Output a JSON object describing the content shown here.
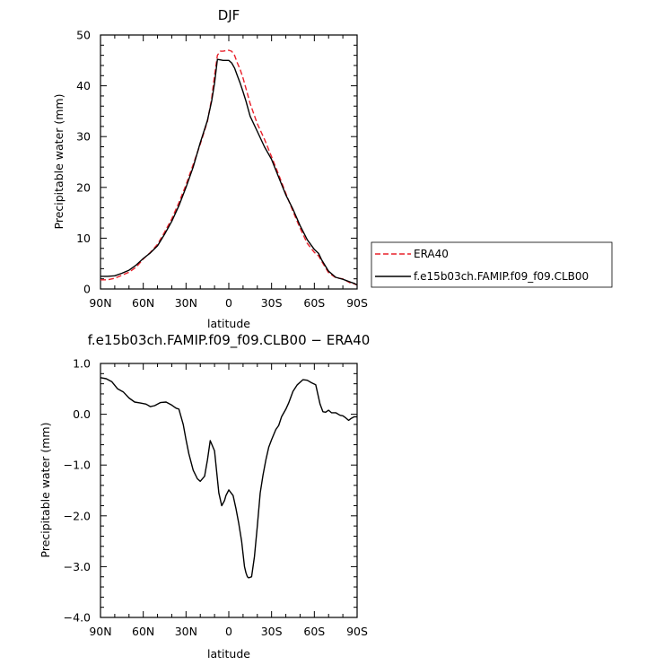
{
  "chart_data": [
    {
      "type": "line",
      "title": "DJF",
      "xlabel": "latitude",
      "ylabel": "Precipitable water (mm)",
      "xlim": [
        90,
        -90
      ],
      "ylim": [
        0,
        50
      ],
      "x_ticks": [
        90,
        60,
        30,
        0,
        -30,
        -60,
        -90
      ],
      "x_tick_labels": [
        "90N",
        "60N",
        "30N",
        "0",
        "30S",
        "60S",
        "90S"
      ],
      "y_ticks": [
        0,
        10,
        20,
        30,
        40,
        50
      ],
      "y_tick_labels": [
        "0",
        "10",
        "20",
        "30",
        "40",
        "50"
      ],
      "legend_position": "right",
      "series": [
        {
          "name": "ERA40",
          "color": "#e8202a",
          "dash": "dashed",
          "x": [
            90,
            85,
            80,
            75,
            70,
            65,
            60,
            55,
            50,
            45,
            40,
            35,
            30,
            25,
            20,
            15,
            12,
            10,
            8,
            6,
            4,
            2,
            0,
            -2,
            -4,
            -6,
            -8,
            -10,
            -12,
            -15,
            -20,
            -25,
            -30,
            -35,
            -40,
            -45,
            -50,
            -55,
            -60,
            -63,
            -65,
            -70,
            -75,
            -80,
            -85,
            -88,
            -90
          ],
          "y": [
            1.8,
            1.8,
            2.1,
            2.7,
            3.3,
            4.3,
            5.9,
            7.2,
            8.8,
            11.2,
            13.8,
            17.0,
            20.5,
            24.5,
            28.5,
            33.0,
            37.5,
            42.0,
            46.0,
            46.8,
            46.8,
            46.9,
            47.0,
            46.8,
            46.0,
            44.5,
            43.2,
            41.5,
            39.5,
            36.5,
            32.5,
            29.5,
            26.0,
            22.5,
            18.8,
            15.3,
            12.0,
            9.0,
            7.2,
            6.5,
            5.5,
            3.2,
            2.2,
            2.0,
            1.2,
            1.0,
            0.8
          ]
        },
        {
          "name": "f.e15b03ch.FAMIP.f09_f09.CLB00",
          "color": "#000000",
          "dash": "solid",
          "x": [
            90,
            85,
            80,
            75,
            70,
            65,
            60,
            55,
            50,
            45,
            40,
            35,
            30,
            25,
            20,
            15,
            12,
            10,
            8,
            6,
            4,
            2,
            0,
            -2,
            -4,
            -6,
            -8,
            -10,
            -12,
            -15,
            -20,
            -25,
            -30,
            -35,
            -40,
            -45,
            -50,
            -55,
            -60,
            -63,
            -65,
            -70,
            -75,
            -80,
            -85,
            -88,
            -90
          ],
          "y": [
            2.5,
            2.5,
            2.6,
            3.1,
            3.7,
            4.7,
            6.0,
            7.1,
            8.5,
            10.8,
            13.3,
            16.4,
            20.0,
            24.0,
            28.8,
            33.2,
            37.0,
            40.5,
            45.2,
            45.1,
            45.0,
            45.0,
            45.0,
            44.5,
            43.5,
            42.0,
            40.5,
            38.8,
            37.0,
            34.0,
            31.0,
            28.0,
            25.5,
            22.0,
            18.5,
            15.7,
            12.5,
            9.7,
            7.8,
            7.0,
            5.8,
            3.5,
            2.3,
            1.9,
            1.4,
            1.1,
            0.8
          ]
        }
      ]
    },
    {
      "type": "line",
      "title": "f.e15b03ch.FAMIP.f09_f09.CLB00 − ERA40",
      "xlabel": "latitude",
      "ylabel": "Precipitable water (mm)",
      "xlim": [
        90,
        -90
      ],
      "ylim": [
        -4.0,
        1.0
      ],
      "x_ticks": [
        90,
        60,
        30,
        0,
        -30,
        -60,
        -90
      ],
      "x_tick_labels": [
        "90N",
        "60N",
        "30N",
        "0",
        "30S",
        "60S",
        "90S"
      ],
      "y_ticks": [
        1.0,
        0.0,
        -1.0,
        -2.0,
        -3.0,
        -4.0
      ],
      "y_tick_labels": [
        "1.0",
        "0.0",
        "−1.0",
        "−2.0",
        "−3.0",
        "−4.0"
      ],
      "series": [
        {
          "color": "#000000",
          "dash": "solid",
          "x": [
            90,
            86,
            82,
            78,
            74,
            70,
            66,
            62,
            58,
            55,
            52,
            48,
            44,
            40,
            37,
            35,
            32,
            30,
            28,
            25,
            22,
            20,
            17,
            15,
            13,
            10,
            7,
            5,
            3,
            2,
            0,
            -3,
            -5,
            -7,
            -9,
            -10,
            -11,
            -12,
            -13,
            -14,
            -16,
            -18,
            -20,
            -22,
            -24,
            -26,
            -28,
            -30,
            -33,
            -35,
            -37,
            -40,
            -42,
            -45,
            -48,
            -52,
            -55,
            -58,
            -61,
            -64,
            -66,
            -68,
            -70,
            -72,
            -75,
            -78,
            -80,
            -82,
            -84,
            -86,
            -88,
            -90
          ],
          "y": [
            0.72,
            0.7,
            0.64,
            0.5,
            0.44,
            0.32,
            0.24,
            0.22,
            0.2,
            0.15,
            0.17,
            0.23,
            0.24,
            0.18,
            0.12,
            0.1,
            -0.2,
            -0.5,
            -0.78,
            -1.1,
            -1.27,
            -1.32,
            -1.22,
            -0.9,
            -0.52,
            -0.72,
            -1.55,
            -1.8,
            -1.7,
            -1.6,
            -1.49,
            -1.6,
            -1.85,
            -2.15,
            -2.5,
            -2.75,
            -3.0,
            -3.12,
            -3.2,
            -3.22,
            -3.2,
            -2.8,
            -2.2,
            -1.55,
            -1.2,
            -0.9,
            -0.65,
            -0.5,
            -0.3,
            -0.22,
            -0.05,
            0.1,
            0.22,
            0.45,
            0.58,
            0.68,
            0.67,
            0.62,
            0.58,
            0.2,
            0.05,
            0.04,
            0.08,
            0.03,
            0.03,
            -0.02,
            -0.03,
            -0.07,
            -0.12,
            -0.08,
            -0.05,
            -0.05
          ]
        }
      ]
    }
  ]
}
